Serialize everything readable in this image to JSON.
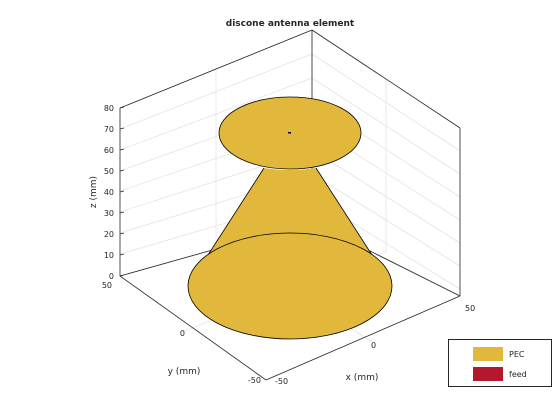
{
  "figure": {
    "title": "discone antenna element"
  },
  "axes": {
    "xlabel": "x (mm)",
    "ylabel": "y (mm)",
    "zlabel": "z (mm)",
    "x_ticks": [
      "-50",
      "0",
      "50"
    ],
    "y_ticks": [
      "50",
      "0",
      "-50"
    ],
    "z_ticks": [
      "0",
      "10",
      "20",
      "30",
      "40",
      "50",
      "60",
      "70",
      "80"
    ]
  },
  "legend": {
    "items": [
      {
        "label": "PEC",
        "color": "#e1b83c"
      },
      {
        "label": "feed",
        "color": "#b3182e"
      }
    ]
  },
  "colors": {
    "pec": "#e1b83c",
    "feed": "#b3182e",
    "grid": "#e3e3e3",
    "axis": "#262626"
  }
}
